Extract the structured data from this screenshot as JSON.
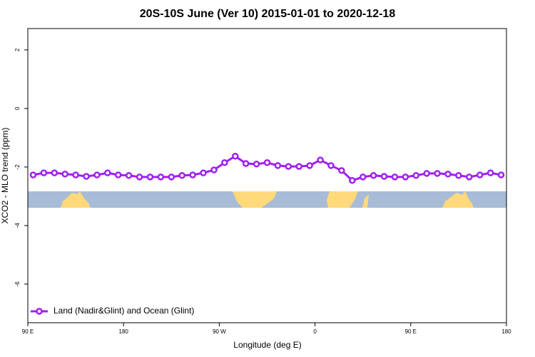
{
  "chart_data": {
    "type": "line",
    "title": "20S-10S June (Ver 10)   2015-01-01 to 2020-12-18",
    "x_label": "Longitude (deg E)",
    "y_label": "XCO2 - MLO trend (ppm)",
    "x": [
      95,
      105,
      115,
      125,
      135,
      145,
      155,
      165,
      175,
      185,
      195,
      205,
      215,
      225,
      235,
      245,
      255,
      265,
      275,
      285,
      295,
      305,
      315,
      325,
      335,
      345,
      355,
      365,
      375,
      385,
      395,
      405,
      415,
      425,
      435,
      445,
      455,
      465,
      475,
      485,
      495,
      505,
      515,
      525,
      535
    ],
    "series": [
      {
        "name": "Land (Nadir&Glint) and Ocean (Glint)",
        "color": "#a020f0",
        "values": [
          -2.27,
          -2.2,
          -2.2,
          -2.24,
          -2.27,
          -2.32,
          -2.27,
          -2.2,
          -2.27,
          -2.29,
          -2.34,
          -2.34,
          -2.34,
          -2.34,
          -2.29,
          -2.27,
          -2.2,
          -2.1,
          -1.85,
          -1.63,
          -1.88,
          -1.9,
          -1.85,
          -1.95,
          -1.98,
          -1.98,
          -1.95,
          -1.76,
          -1.95,
          -2.12,
          -2.46,
          -2.34,
          -2.29,
          -2.32,
          -2.34,
          -2.34,
          -2.29,
          -2.22,
          -2.22,
          -2.24,
          -2.29,
          -2.34,
          -2.27,
          -2.2,
          -2.27
        ]
      }
    ],
    "xlim": [
      90,
      540
    ],
    "xticks": [
      {
        "value": 90,
        "label": "90 E"
      },
      180,
      {
        "value": 270,
        "label": "90 W"
      },
      {
        "value": 360,
        "label": "0"
      },
      {
        "value": 450,
        "label": "90 E"
      },
      {
        "value": 540,
        "label": "180"
      }
    ],
    "ylim": [
      -7.32,
      2.73
    ],
    "yticks": [
      -6,
      -4,
      -2,
      0,
      2
    ],
    "legend": "bottom-left"
  }
}
